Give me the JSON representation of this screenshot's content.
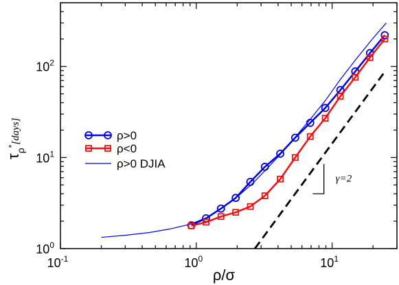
{
  "chart_data": {
    "type": "line",
    "title": "",
    "xlabel": "ρ/σ",
    "ylabel": {
      "main": "τ",
      "sub": "ρ",
      "sup": "*",
      "unit": "[days]"
    },
    "xscale": "log",
    "yscale": "log",
    "xlim": [
      0.1,
      30
    ],
    "ylim": [
      1,
      500
    ],
    "x_ticks": [
      {
        "value": 0.1,
        "base": "10",
        "exp": "-1"
      },
      {
        "value": 1,
        "base": "10",
        "exp": "0"
      },
      {
        "value": 10,
        "base": "10",
        "exp": "1"
      }
    ],
    "y_ticks": [
      {
        "value": 1,
        "base": "10",
        "exp": "0"
      },
      {
        "value": 10,
        "base": "10",
        "exp": "1"
      },
      {
        "value": 100,
        "base": "10",
        "exp": "2"
      }
    ],
    "grid": false,
    "legend_position": "middle-left",
    "series": [
      {
        "name": "ρ>0",
        "color": "#0000dd",
        "marker": "circle",
        "line_width": 2.5,
        "x": [
          0.92,
          1.18,
          1.52,
          1.95,
          2.5,
          3.2,
          4.15,
          5.35,
          6.9,
          8.9,
          11.5,
          14.8,
          19.0,
          24.4
        ],
        "y": [
          1.8,
          2.15,
          2.75,
          3.6,
          5.4,
          7.9,
          11.0,
          16.5,
          24.0,
          35.0,
          55.0,
          88.0,
          140.0,
          220.0
        ]
      },
      {
        "name": "ρ<0",
        "color": "#ee1111",
        "marker": "square",
        "line_width": 2.5,
        "x": [
          0.92,
          1.18,
          1.52,
          1.95,
          2.5,
          3.2,
          4.15,
          5.35,
          6.9,
          8.9,
          11.5,
          14.8,
          19.0,
          24.4
        ],
        "y": [
          1.78,
          1.95,
          2.25,
          2.5,
          2.9,
          3.8,
          5.8,
          10.0,
          17.0,
          27.0,
          47.0,
          76.0,
          125.0,
          200.0
        ]
      },
      {
        "name": "ρ>0 DJIA",
        "color": "#0000dd",
        "marker": "none",
        "line_width": 1.2,
        "x": [
          0.2,
          0.3,
          0.45,
          0.65,
          0.9,
          1.2,
          1.55,
          2.0,
          2.6,
          3.3,
          4.2,
          5.4,
          7.0,
          9.0,
          11.5,
          15.0,
          19.5,
          25.0
        ],
        "y": [
          1.33,
          1.4,
          1.5,
          1.65,
          1.85,
          2.2,
          2.8,
          3.7,
          5.2,
          7.5,
          11.0,
          17.0,
          27.0,
          43.0,
          72.0,
          120.0,
          195.0,
          300.0
        ]
      }
    ],
    "reference_line": {
      "style": "dashed",
      "color": "#000000",
      "x": [
        2.7,
        24.5
      ],
      "y": [
        1.0,
        88.0
      ]
    },
    "slope_indicator": {
      "label": "γ=2",
      "corner": [
        8.7,
        4.0
      ],
      "x_left": 7.2,
      "y_top": 8.5
    }
  }
}
